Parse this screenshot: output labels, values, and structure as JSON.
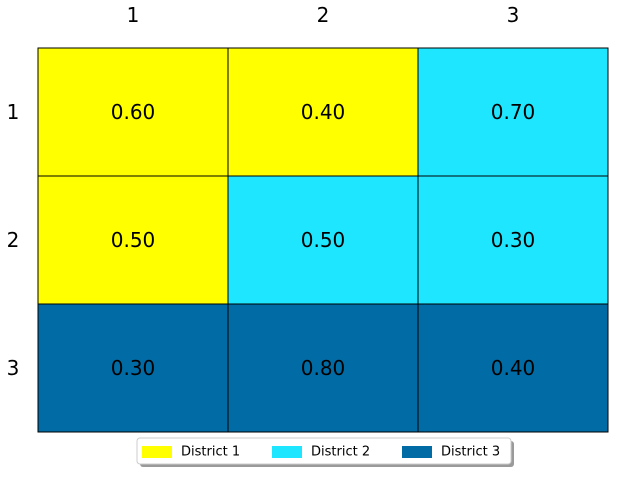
{
  "chart_data": {
    "type": "heatmap",
    "title": "",
    "xlabel": "",
    "ylabel": "",
    "x_ticks": [
      "1",
      "2",
      "3"
    ],
    "y_ticks": [
      "1",
      "2",
      "3"
    ],
    "x_tick_position": "top",
    "cells": [
      [
        {
          "value": "0.60",
          "district": 0
        },
        {
          "value": "0.40",
          "district": 0
        },
        {
          "value": "0.70",
          "district": 1
        }
      ],
      [
        {
          "value": "0.50",
          "district": 0
        },
        {
          "value": "0.50",
          "district": 1
        },
        {
          "value": "0.30",
          "district": 1
        }
      ],
      [
        {
          "value": "0.30",
          "district": 2
        },
        {
          "value": "0.80",
          "district": 2
        },
        {
          "value": "0.40",
          "district": 2
        }
      ]
    ],
    "legend": {
      "placement": "bottom-center",
      "entries": [
        {
          "label": "District 1",
          "color": "#ffff00"
        },
        {
          "label": "District 2",
          "color": "#1ee6ff"
        },
        {
          "label": "District 3",
          "color": "#006ba4"
        }
      ]
    }
  }
}
